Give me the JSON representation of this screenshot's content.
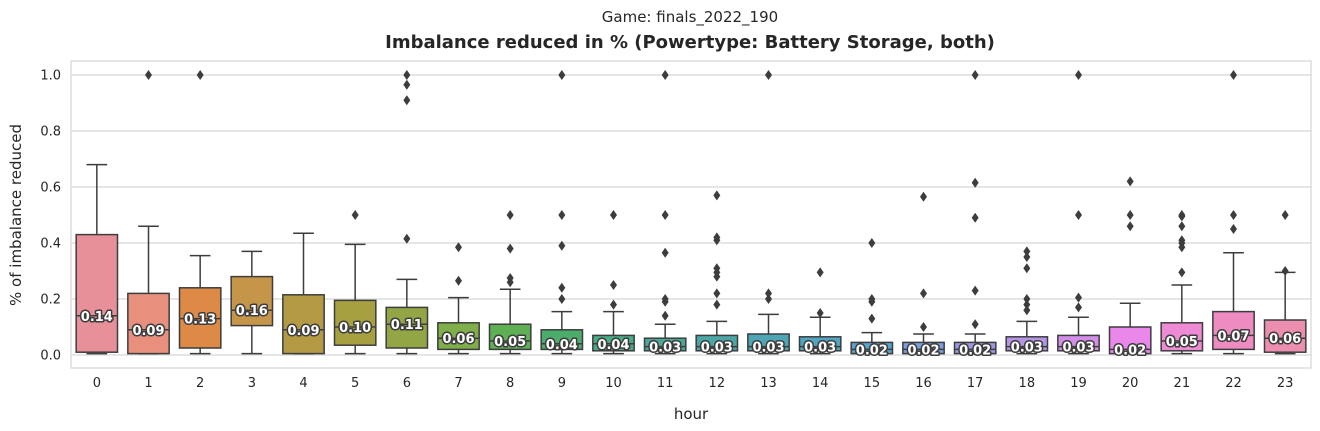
{
  "chart_data": {
    "type": "box",
    "suptitle": "Game: finals_2022_190",
    "title": "Imbalance reduced in % (Powertype: Battery Storage, both)",
    "xlabel": "hour",
    "ylabel": "% of imbalance reduced",
    "ylim": [
      -0.05,
      1.05
    ],
    "yticks": [
      "0.0",
      "0.2",
      "0.4",
      "0.6",
      "0.8",
      "1.0"
    ],
    "grid": "horizontal",
    "categories": [
      "0",
      "1",
      "2",
      "3",
      "4",
      "5",
      "6",
      "7",
      "8",
      "9",
      "10",
      "11",
      "12",
      "13",
      "14",
      "15",
      "16",
      "17",
      "18",
      "19",
      "20",
      "21",
      "22",
      "23"
    ],
    "boxes": [
      {
        "q1": 0.01,
        "median": 0.14,
        "q3": 0.43,
        "whisker_low": 0.005,
        "whisker_high": 0.68,
        "outliers": [],
        "color": "#e8909a"
      },
      {
        "q1": 0.005,
        "median": 0.09,
        "q3": 0.22,
        "whisker_low": 0.005,
        "whisker_high": 0.46,
        "outliers": [
          1.0
        ],
        "color": "#e8907d"
      },
      {
        "q1": 0.025,
        "median": 0.13,
        "q3": 0.24,
        "whisker_low": 0.005,
        "whisker_high": 0.355,
        "outliers": [
          1.0
        ],
        "color": "#de8a47"
      },
      {
        "q1": 0.105,
        "median": 0.16,
        "q3": 0.28,
        "whisker_low": 0.005,
        "whisker_high": 0.37,
        "outliers": [],
        "color": "#c5964a"
      },
      {
        "q1": 0.005,
        "median": 0.09,
        "q3": 0.215,
        "whisker_low": 0.005,
        "whisker_high": 0.435,
        "outliers": [],
        "color": "#b59a46"
      },
      {
        "q1": 0.035,
        "median": 0.1,
        "q3": 0.195,
        "whisker_low": 0.005,
        "whisker_high": 0.395,
        "outliers": [
          0.5
        ],
        "color": "#a6a040"
      },
      {
        "q1": 0.025,
        "median": 0.11,
        "q3": 0.17,
        "whisker_low": 0.005,
        "whisker_high": 0.27,
        "outliers": [
          0.415,
          0.91,
          0.965,
          1.0
        ],
        "color": "#93a645"
      },
      {
        "q1": 0.02,
        "median": 0.06,
        "q3": 0.115,
        "whisker_low": 0.005,
        "whisker_high": 0.205,
        "outliers": [
          0.265,
          0.385
        ],
        "color": "#7fae4a"
      },
      {
        "q1": 0.02,
        "median": 0.05,
        "q3": 0.11,
        "whisker_low": 0.005,
        "whisker_high": 0.235,
        "outliers": [
          0.26,
          0.275,
          0.38,
          0.5
        ],
        "color": "#5eb054"
      },
      {
        "q1": 0.02,
        "median": 0.04,
        "q3": 0.09,
        "whisker_low": 0.005,
        "whisker_high": 0.155,
        "outliers": [
          0.2,
          0.24,
          0.39,
          0.5,
          1.0
        ],
        "color": "#4bac6c"
      },
      {
        "q1": 0.015,
        "median": 0.04,
        "q3": 0.07,
        "whisker_low": 0.005,
        "whisker_high": 0.155,
        "outliers": [
          0.18,
          0.25,
          0.5
        ],
        "color": "#4aab87"
      },
      {
        "q1": 0.015,
        "median": 0.03,
        "q3": 0.06,
        "whisker_low": 0.005,
        "whisker_high": 0.11,
        "outliers": [
          0.14,
          0.19,
          0.2,
          0.365,
          0.5,
          1.0
        ],
        "color": "#4aa898"
      },
      {
        "q1": 0.015,
        "median": 0.03,
        "q3": 0.07,
        "whisker_low": 0.005,
        "whisker_high": 0.12,
        "outliers": [
          0.18,
          0.22,
          0.28,
          0.295,
          0.31,
          0.41,
          0.42,
          0.57
        ],
        "color": "#4ca6a6"
      },
      {
        "q1": 0.015,
        "median": 0.03,
        "q3": 0.075,
        "whisker_low": 0.005,
        "whisker_high": 0.145,
        "outliers": [
          0.2,
          0.22,
          1.0
        ],
        "color": "#4ea5b3"
      },
      {
        "q1": 0.015,
        "median": 0.03,
        "q3": 0.065,
        "whisker_low": 0.005,
        "whisker_high": 0.135,
        "outliers": [
          0.15,
          0.295
        ],
        "color": "#50a5c1"
      },
      {
        "q1": 0.005,
        "median": 0.02,
        "q3": 0.045,
        "whisker_low": 0.005,
        "whisker_high": 0.08,
        "outliers": [
          0.13,
          0.19,
          0.2,
          0.4
        ],
        "color": "#56a3d1"
      },
      {
        "q1": 0.005,
        "median": 0.02,
        "q3": 0.045,
        "whisker_low": 0.005,
        "whisker_high": 0.075,
        "outliers": [
          0.1,
          0.22,
          0.565
        ],
        "color": "#7a9ee0"
      },
      {
        "q1": 0.005,
        "median": 0.02,
        "q3": 0.045,
        "whisker_low": 0.005,
        "whisker_high": 0.075,
        "outliers": [
          0.11,
          0.23,
          0.49,
          0.615,
          1.0
        ],
        "color": "#9b97e4"
      },
      {
        "q1": 0.015,
        "median": 0.03,
        "q3": 0.065,
        "whisker_low": 0.005,
        "whisker_high": 0.12,
        "outliers": [
          0.16,
          0.18,
          0.2,
          0.31,
          0.35,
          0.37
        ],
        "color": "#b593e7"
      },
      {
        "q1": 0.015,
        "median": 0.03,
        "q3": 0.07,
        "whisker_low": 0.005,
        "whisker_high": 0.135,
        "outliers": [
          0.17,
          0.205,
          0.5,
          1.0
        ],
        "color": "#d38ee8"
      },
      {
        "q1": 0.005,
        "median": 0.02,
        "q3": 0.1,
        "whisker_low": 0.005,
        "whisker_high": 0.185,
        "outliers": [
          0.46,
          0.5,
          0.62
        ],
        "color": "#ea87ea"
      },
      {
        "q1": 0.015,
        "median": 0.05,
        "q3": 0.115,
        "whisker_low": 0.005,
        "whisker_high": 0.25,
        "outliers": [
          0.295,
          0.385,
          0.4,
          0.41,
          0.46,
          0.495,
          0.5
        ],
        "color": "#ef8bd4"
      },
      {
        "q1": 0.02,
        "median": 0.07,
        "q3": 0.155,
        "whisker_low": 0.005,
        "whisker_high": 0.365,
        "outliers": [
          0.45,
          0.5,
          1.0
        ],
        "color": "#ee8cc2"
      },
      {
        "q1": 0.01,
        "median": 0.06,
        "q3": 0.125,
        "whisker_low": 0.005,
        "whisker_high": 0.295,
        "outliers": [
          0.3,
          0.5
        ],
        "color": "#ec8eaf"
      }
    ],
    "median_labels": [
      "0.14",
      "0.09",
      "0.13",
      "0.16",
      "0.09",
      "0.10",
      "0.11",
      "0.06",
      "0.05",
      "0.04",
      "0.04",
      "0.03",
      "0.03",
      "0.03",
      "0.03",
      "0.02",
      "0.02",
      "0.02",
      "0.03",
      "0.03",
      "0.02",
      "0.05",
      "0.07",
      "0.06"
    ]
  }
}
